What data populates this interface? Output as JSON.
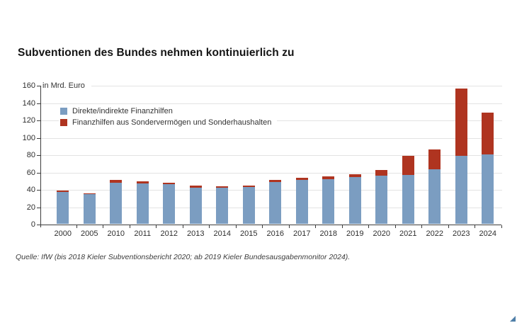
{
  "title": "Subventionen des Bundes nehmen kontinuierlich zu",
  "source": "Quelle: IfW (bis 2018 Kieler Subventionsbericht 2020; ab 2019 Kieler Bundesausgabenmonitor 2024).",
  "chart_data": {
    "type": "bar",
    "stacked": true,
    "title": "Subventionen des Bundes nehmen kontinuierlich zu",
    "unit_label": "in Mrd. Euro",
    "categories": [
      "2000",
      "2005",
      "2010",
      "2011",
      "2012",
      "2013",
      "2014",
      "2015",
      "2016",
      "2017",
      "2018",
      "2019",
      "2020",
      "2021",
      "2022",
      "2023",
      "2024"
    ],
    "series": [
      {
        "name": "Direkte/indirekte Finanzhilfen",
        "color": "#7b9dc1",
        "values": [
          37,
          34,
          47.5,
          46.5,
          45.5,
          42,
          41.5,
          42.5,
          48,
          50.5,
          51.5,
          53.5,
          55.5,
          56.5,
          62.5,
          78,
          80
        ]
      },
      {
        "name": "Finanzhilfen aus Sondervermögen und Sonderhaushalten",
        "color": "#af3420",
        "values": [
          1,
          1,
          3,
          2.5,
          1.5,
          2,
          2,
          2,
          2.5,
          2.5,
          3,
          4,
          6.5,
          22,
          23.5,
          78,
          48.5
        ]
      }
    ],
    "totals": [
      38,
      35,
      50.5,
      49,
      47,
      44,
      43.5,
      44.5,
      50.5,
      53,
      54.5,
      57.5,
      62,
      78.5,
      86,
      156,
      128.5
    ],
    "ylim": [
      0,
      160
    ],
    "yticks": [
      0,
      20,
      40,
      60,
      80,
      100,
      120,
      140,
      160
    ],
    "grid": true,
    "legend_position": "upper-left-inside",
    "grid_color": "#e3e3e3",
    "axis_color": "#3c3c3c"
  },
  "decorations": {
    "corner_mark_color": "#4f7fa8"
  }
}
